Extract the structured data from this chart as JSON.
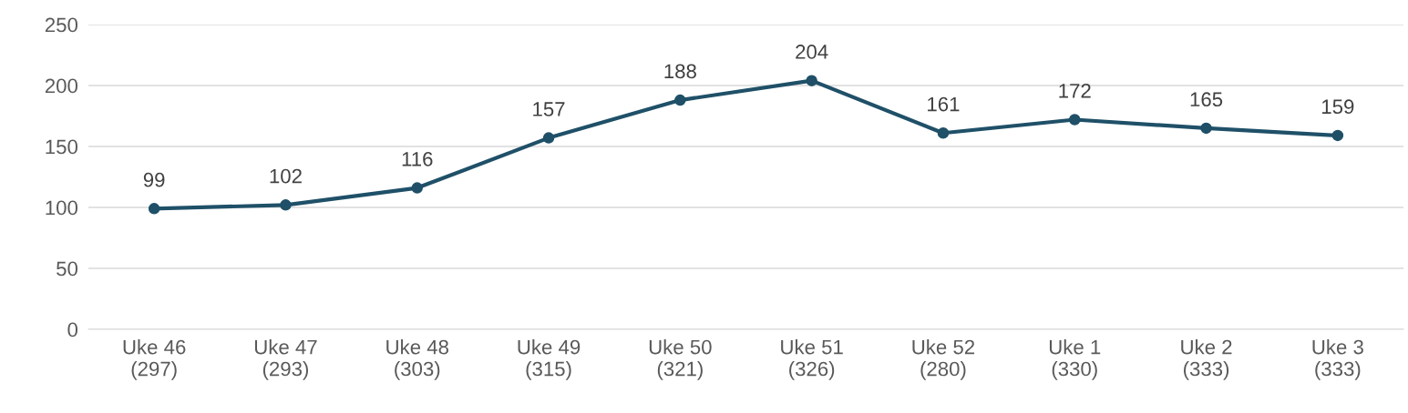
{
  "chart_data": {
    "type": "line",
    "categories": [
      "Uke 46\n(297)",
      "Uke 47\n(293)",
      "Uke 48\n(303)",
      "Uke 49\n(315)",
      "Uke 50\n(321)",
      "Uke 51\n(326)",
      "Uke 52\n(280)",
      "Uke 1\n(330)",
      "Uke 2\n(333)",
      "Uke 3\n(333)"
    ],
    "series": [
      {
        "color": "#1f5068",
        "values": [
          99,
          102,
          116,
          157,
          188,
          204,
          161,
          172,
          165,
          159
        ]
      }
    ],
    "ylim": [
      0,
      250
    ],
    "yticks": [
      0,
      50,
      100,
      150,
      200,
      250
    ],
    "grid": "y",
    "marker": "circle",
    "line_style": "solid",
    "data_labels": true
  }
}
